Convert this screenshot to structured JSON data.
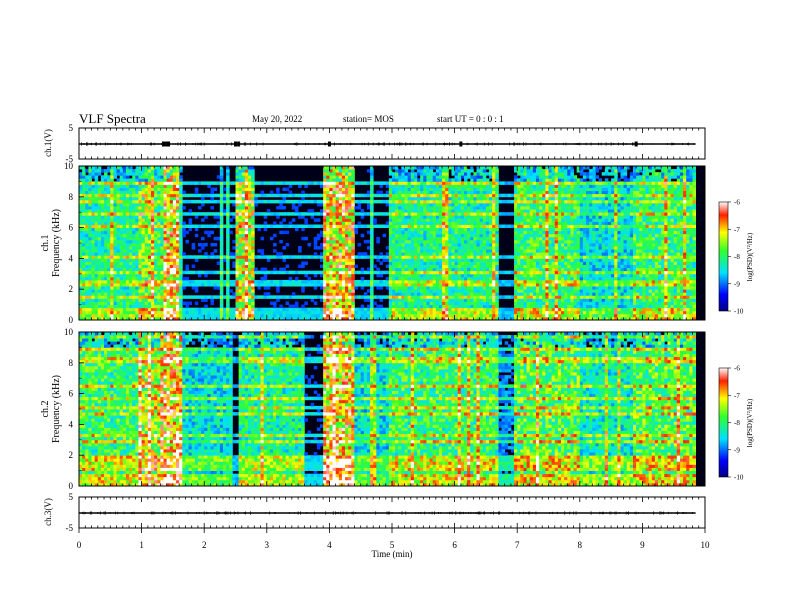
{
  "header": {
    "title": "VLF Spectra",
    "date": "May 20, 2022",
    "station": "station= MOS",
    "start": "start  UT =  0 : 0 : 1"
  },
  "chart_data": [
    {
      "type": "line",
      "panel": "ch1-waveform",
      "ylabel": "ch.1(V)",
      "ylim": [
        -5,
        5
      ],
      "yticks": [
        {
          "v": 5,
          "label": "5"
        },
        {
          "v": -5,
          "label": "-5"
        }
      ],
      "series": [
        {
          "values": [
            [
              0,
              0
            ],
            [
              9.85,
              0
            ]
          ]
        }
      ],
      "spikes": [
        1.35,
        1.4,
        1.43,
        2.5,
        2.55,
        4.0,
        6.1,
        8.9
      ]
    },
    {
      "type": "heatmap",
      "panel": "ch1-spectrogram",
      "ylabel_line1": "ch.1",
      "ylabel_line2": "Frequency  (kHz)",
      "ylim": [
        0,
        10
      ],
      "yticks": [
        "0",
        "2",
        "4",
        "6",
        "8",
        "10"
      ],
      "x_extent_min": [
        0,
        9.85
      ],
      "activity": [
        {
          "t0": 0.0,
          "t1": 0.95,
          "level": 0.55
        },
        {
          "t0": 0.95,
          "t1": 1.2,
          "level": 0.7
        },
        {
          "t0": 1.2,
          "t1": 1.45,
          "level": 0.6
        },
        {
          "t0": 1.35,
          "t1": 1.6,
          "level": 0.95
        },
        {
          "t0": 1.6,
          "t1": 2.5,
          "level": 0.2
        },
        {
          "t0": 2.5,
          "t1": 2.8,
          "level": 0.75
        },
        {
          "t0": 2.8,
          "t1": 3.9,
          "level": 0.2
        },
        {
          "t0": 3.9,
          "t1": 4.4,
          "level": 0.9
        },
        {
          "t0": 4.4,
          "t1": 4.95,
          "level": 0.2
        },
        {
          "t0": 4.95,
          "t1": 6.7,
          "level": 0.55
        },
        {
          "t0": 6.7,
          "t1": 6.95,
          "level": 0.15
        },
        {
          "t0": 6.95,
          "t1": 8.0,
          "level": 0.6
        },
        {
          "t0": 8.0,
          "t1": 8.85,
          "level": 0.45
        },
        {
          "t0": 8.85,
          "t1": 9.85,
          "level": 0.6
        }
      ],
      "colorbar": {
        "label": "log(PSD)(V²/Hz)",
        "range": [
          -10,
          -6
        ],
        "ticks": [
          "-6",
          "-7",
          "-8",
          "-9",
          "-10"
        ]
      }
    },
    {
      "type": "heatmap",
      "panel": "ch2-spectrogram",
      "ylabel_line1": "ch.2",
      "ylabel_line2": "Frequency  (kHz)",
      "ylim": [
        0,
        10
      ],
      "yticks": [
        "0",
        "2",
        "4",
        "6",
        "8",
        "10"
      ],
      "x_extent_min": [
        0,
        9.85
      ],
      "activity": [
        {
          "t0": 0.0,
          "t1": 0.95,
          "level": 0.6
        },
        {
          "t0": 0.95,
          "t1": 1.3,
          "level": 0.75
        },
        {
          "t0": 1.3,
          "t1": 1.65,
          "level": 0.95
        },
        {
          "t0": 1.65,
          "t1": 2.4,
          "level": 0.45
        },
        {
          "t0": 2.4,
          "t1": 2.55,
          "level": 0.15
        },
        {
          "t0": 2.55,
          "t1": 3.6,
          "level": 0.55
        },
        {
          "t0": 3.6,
          "t1": 3.9,
          "level": 0.2
        },
        {
          "t0": 3.9,
          "t1": 4.4,
          "level": 0.9
        },
        {
          "t0": 4.4,
          "t1": 4.95,
          "level": 0.45
        },
        {
          "t0": 4.95,
          "t1": 6.7,
          "level": 0.6
        },
        {
          "t0": 6.7,
          "t1": 6.95,
          "level": 0.3
        },
        {
          "t0": 6.95,
          "t1": 8.0,
          "level": 0.65
        },
        {
          "t0": 8.0,
          "t1": 8.85,
          "level": 0.5
        },
        {
          "t0": 8.85,
          "t1": 9.85,
          "level": 0.65
        }
      ],
      "colorbar": {
        "label": "log(PSD)(V²/Hz)",
        "range": [
          -10,
          -6
        ],
        "ticks": [
          "-6",
          "-7",
          "-8",
          "-9",
          "-10"
        ]
      }
    },
    {
      "type": "line",
      "panel": "ch3-waveform",
      "ylabel": "ch.3(V)",
      "ylim": [
        -5,
        5
      ],
      "yticks": [
        {
          "v": 5,
          "label": "5"
        },
        {
          "v": -5,
          "label": "-5"
        }
      ],
      "series": [
        {
          "values": [
            [
              0,
              0
            ],
            [
              9.85,
              0
            ]
          ]
        }
      ],
      "spikes": []
    }
  ],
  "xaxis": {
    "label": "Time  (min)",
    "range": [
      0,
      10
    ],
    "ticks": [
      "0",
      "1",
      "2",
      "3",
      "4",
      "5",
      "6",
      "7",
      "8",
      "9",
      "10"
    ]
  }
}
